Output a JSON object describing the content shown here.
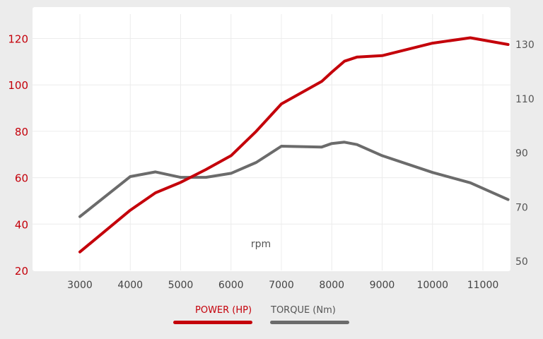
{
  "chart_data": {
    "type": "line",
    "xlabel": "rpm",
    "x": [
      3000,
      4000,
      4500,
      5000,
      5500,
      6000,
      6500,
      7000,
      7800,
      8000,
      8250,
      8500,
      9000,
      10000,
      10750,
      11500
    ],
    "series": [
      {
        "name": "POWER (HP)",
        "axis": "left",
        "color": "#c4000a",
        "values": [
          28,
          46,
          53.5,
          58,
          63.5,
          69.5,
          80,
          91.8,
          101.5,
          105.5,
          110.2,
          112,
          112.6,
          118,
          120.3,
          117.4
        ]
      },
      {
        "name": "TORQUE (Nm)",
        "axis": "right",
        "color": "#6b6b6b",
        "values": [
          66.5,
          81.3,
          83,
          81,
          81,
          82.5,
          86.5,
          92.5,
          92.2,
          93.5,
          94,
          93.1,
          89,
          82.8,
          79,
          72.8
        ]
      }
    ],
    "x_ticks": [
      "3000",
      "4000",
      "5000",
      "6000",
      "7000",
      "8000",
      "9000",
      "10000",
      "11000"
    ],
    "y_left_ticks": [
      "20",
      "40",
      "60",
      "80",
      "100",
      "120"
    ],
    "y_right_ticks": [
      "50",
      "70",
      "90",
      "110",
      "130"
    ],
    "xlim": [
      2700,
      11900
    ],
    "ylim_left": [
      20,
      120
    ],
    "ylim_right": [
      50,
      130
    ],
    "grid": true,
    "legend_position": "bottom"
  },
  "colors": {
    "power": "#c4000a",
    "torque": "#6b6b6b",
    "background": "#ececec",
    "card": "#ffffff",
    "grid": "#ececec"
  }
}
